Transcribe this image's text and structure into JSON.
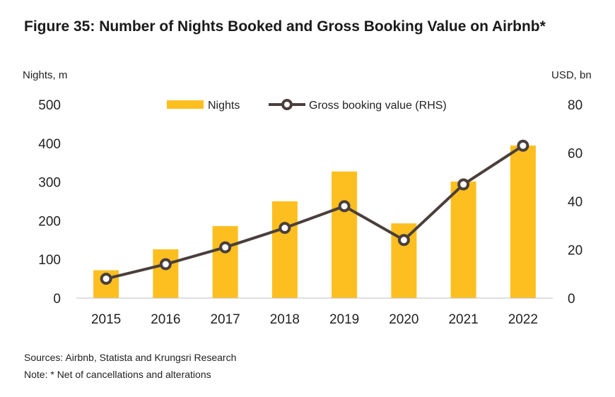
{
  "title": "Figure 35: Number of Nights Booked and Gross Booking Value on Airbnb*",
  "left_unit": "Nights, m",
  "right_unit": "USD, bn",
  "sources": "Sources: Airbnb, Statista and Krungsri Research",
  "note": "Note: * Net of cancellations and alterations",
  "colors": {
    "bar": "#FDBF20",
    "line": "#4A3F3C",
    "marker_fill": "#ffffff"
  },
  "chart_data": {
    "type": "bar+line",
    "categories": [
      "2015",
      "2016",
      "2017",
      "2018",
      "2019",
      "2020",
      "2021",
      "2022"
    ],
    "series": [
      {
        "name": "Nights",
        "type": "bar",
        "axis": "left",
        "values": [
          72,
          126,
          186,
          250,
          327,
          193,
          301,
          394
        ]
      },
      {
        "name": "Gross booking value (RHS)",
        "type": "line",
        "axis": "right",
        "values": [
          8,
          14,
          21,
          29,
          38,
          24,
          47,
          63
        ]
      }
    ],
    "yleft": {
      "lim": [
        0,
        500
      ],
      "ticks": [
        "0",
        "100",
        "200",
        "300",
        "400",
        "500"
      ]
    },
    "yright": {
      "lim": [
        0,
        80
      ],
      "ticks": [
        "0",
        "20",
        "40",
        "60",
        "80"
      ]
    },
    "legend_position": "top-center",
    "grid": false
  }
}
